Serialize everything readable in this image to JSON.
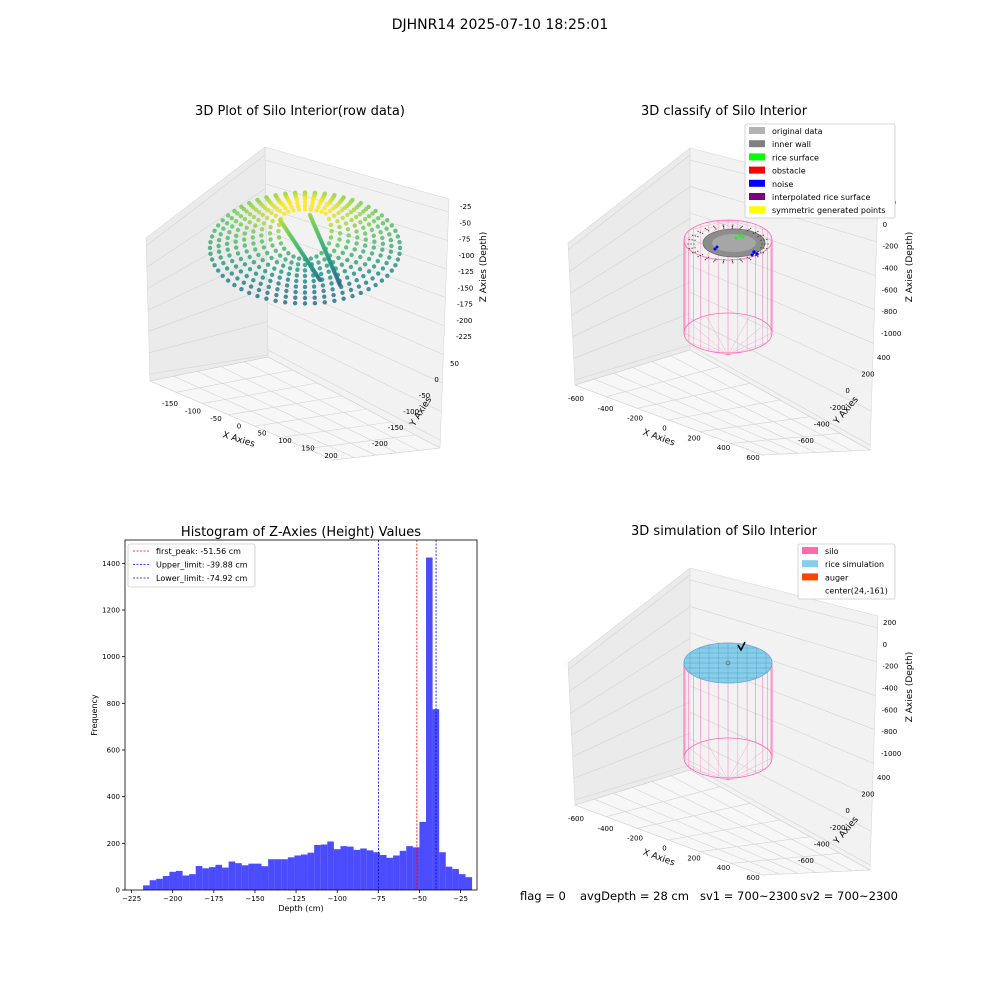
{
  "figure": {
    "title": "DJHNR14 2025-07-10 18:25:01"
  },
  "panels": {
    "raw": {
      "title": "3D Plot of Silo Interior(row data)",
      "x_label": "X Axies",
      "y_label": "Y Axies",
      "z_label": "Z Axies (Depth)",
      "x_ticks": [
        "-150",
        "-100",
        "-50",
        "0",
        "50",
        "100",
        "150",
        "200"
      ],
      "y_ticks": [
        "50",
        "0",
        "-50",
        "-100",
        "-150",
        "-200"
      ],
      "z_ticks": [
        "-25",
        "-50",
        "-75",
        "-100",
        "-125",
        "-150",
        "-175",
        "-200",
        "-225"
      ]
    },
    "classify": {
      "title": "3D classify of Silo Interior",
      "x_label": "X Axies",
      "y_label": "Y Axies",
      "z_label": "Z Axies (Depth)",
      "x_ticks": [
        "-600",
        "-400",
        "-200",
        "0",
        "200",
        "400",
        "600"
      ],
      "y_ticks": [
        "400",
        "200",
        "0",
        "-200",
        "-400",
        "-600"
      ],
      "z_ticks": [
        "200",
        "0",
        "-200",
        "-400",
        "-600",
        "-800",
        "-1000"
      ],
      "legend": [
        {
          "label": "original data",
          "color": "#b3b3b3"
        },
        {
          "label": "inner wall",
          "color": "#808080"
        },
        {
          "label": "rice surface",
          "color": "#00ff00"
        },
        {
          "label": "obstacle",
          "color": "#ff0000"
        },
        {
          "label": "noise",
          "color": "#0000ff"
        },
        {
          "label": "interpolated rice surface",
          "color": "#800080"
        },
        {
          "label": "symmetric generated points",
          "color": "#ffff00"
        }
      ]
    },
    "simulation": {
      "title": "3D simulation of Silo Interior",
      "x_label": "X Axies",
      "y_label": "Y Axies",
      "z_label": "Z Axies (Depth)",
      "x_ticks": [
        "-600",
        "-400",
        "-200",
        "0",
        "200",
        "400",
        "600"
      ],
      "y_ticks": [
        "400",
        "200",
        "0",
        "-200",
        "-400",
        "-600"
      ],
      "z_ticks": [
        "200",
        "0",
        "-200",
        "-400",
        "-600",
        "-800",
        "-1000"
      ],
      "legend": [
        {
          "label": "silo",
          "color": "#ff69b4"
        },
        {
          "label": "rice simulation",
          "color": "#87ceeb"
        },
        {
          "label": "auger",
          "color": "#ff4500"
        },
        {
          "label": "center(24,-161)",
          "color": ""
        }
      ]
    }
  },
  "chart_data": {
    "type": "bar",
    "title": "Histogram of Z-Axies (Height) Values",
    "xlabel": "Depth (cm)",
    "ylabel": "Frequency",
    "xlim": [
      -229,
      -15
    ],
    "ylim": [
      0,
      1500
    ],
    "x_ticks": [
      -225,
      -200,
      -175,
      -150,
      -125,
      -100,
      -75,
      -50,
      -25
    ],
    "y_ticks": [
      0,
      200,
      400,
      600,
      800,
      1000,
      1200,
      1400
    ],
    "bar_color": "#0000ff",
    "bin_start": -218,
    "bin_width": 4,
    "values": [
      20,
      42,
      48,
      60,
      78,
      82,
      62,
      68,
      103,
      93,
      98,
      108,
      96,
      122,
      115,
      106,
      113,
      113,
      102,
      132,
      132,
      132,
      140,
      148,
      152,
      160,
      193,
      195,
      208,
      175,
      188,
      186,
      172,
      178,
      170,
      162,
      150,
      138,
      148,
      168,
      188,
      183,
      292,
      1425,
      775,
      162,
      100,
      90,
      68,
      55
    ],
    "lines": [
      {
        "label": "first_peak: -51.56 cm",
        "x": -51.56,
        "color": "#ff0000"
      },
      {
        "label": "Upper_limit: -39.88 cm",
        "x": -39.88,
        "color": "#0000ff"
      },
      {
        "label": "Lower_limit: -74.92 cm",
        "x": -74.92,
        "color": "#0000ff"
      }
    ],
    "legend_position": "top-left"
  },
  "status": {
    "flag": "flag = 0",
    "avg_depth": "avgDepth = 28 cm",
    "sv1": "sv1 = 700~2300",
    "sv2": "sv2 = 700~2300"
  }
}
